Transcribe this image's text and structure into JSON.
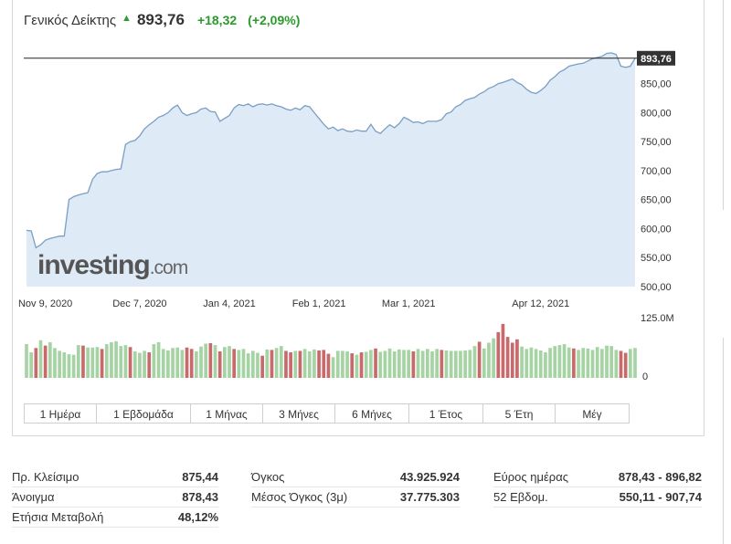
{
  "header": {
    "index_name": "Γενικός Δείκτης",
    "arrow_icon": "triangle-up-icon",
    "price": "893,76",
    "change": "+18,32",
    "change_pct": "(+2,09%)"
  },
  "colors": {
    "up_volume": "#a5d3a3",
    "down_volume": "#c86a6c",
    "line": "#7a9ec5",
    "area_fill": "#deeaf6",
    "positive_text": "#2a9a2a"
  },
  "chart_data": {
    "type": "area",
    "title": "",
    "watermark": "investing.com",
    "current_value_label": "893,76",
    "current_value": 893.76,
    "y_ticks": [
      500,
      550,
      600,
      650,
      700,
      750,
      800,
      850
    ],
    "y_tick_labels": [
      "500,00",
      "550,00",
      "600,00",
      "650,00",
      "700,00",
      "750,00",
      "800,00",
      "850,00"
    ],
    "ylim": [
      500,
      906
    ],
    "x_tick_labels": [
      "Nov 9, 2020",
      "Dec 7, 2020",
      "Jan 4, 2021",
      "Feb 1, 2021",
      "Mar 1, 2021",
      "Apr 12, 2021"
    ],
    "x_tick_index": [
      4,
      24,
      43,
      62,
      81,
      109
    ],
    "series": [
      {
        "values": [
          597,
          596,
          567,
          572,
          580,
          583,
          585,
          587,
          587,
          650,
          655,
          658,
          660,
          662,
          685,
          695,
          698,
          698,
          700,
          702,
          703,
          745,
          750,
          752,
          760,
          772,
          779,
          785,
          792,
          795,
          800,
          808,
          813,
          800,
          795,
          798,
          800,
          806,
          808,
          802,
          801,
          785,
          790,
          795,
          808,
          814,
          812,
          815,
          810,
          814,
          815,
          813,
          815,
          812,
          810,
          806,
          804,
          808,
          805,
          812,
          810,
          800,
          790,
          780,
          772,
          775,
          769,
          772,
          768,
          767,
          770,
          768,
          768,
          780,
          768,
          764,
          772,
          779,
          774,
          781,
          792,
          788,
          783,
          784,
          781,
          785,
          785,
          785,
          788,
          798,
          801,
          810,
          814,
          821,
          824,
          826,
          832,
          836,
          842,
          845,
          850,
          852,
          855,
          858,
          852,
          848,
          840,
          835,
          833,
          838,
          845,
          856,
          862,
          870,
          874,
          880,
          882,
          884,
          885,
          889,
          893,
          895,
          897,
          902,
          903,
          900,
          880,
          878,
          880,
          893.76
        ]
      }
    ],
    "volume": {
      "axis_top_label": "125.0M",
      "axis_bottom_label": "0",
      "ylim": [
        0,
        125
      ],
      "values": [
        70,
        53,
        62,
        78,
        67,
        74,
        62,
        56,
        53,
        49,
        48,
        68,
        67,
        63,
        63,
        64,
        60,
        70,
        74,
        76,
        66,
        68,
        64,
        55,
        52,
        56,
        53,
        70,
        74,
        60,
        57,
        62,
        63,
        58,
        63,
        60,
        55,
        65,
        71,
        72,
        68,
        55,
        64,
        66,
        60,
        58,
        60,
        51,
        56,
        52,
        46,
        59,
        58,
        62,
        66,
        56,
        53,
        56,
        56,
        60,
        55,
        59,
        57,
        58,
        50,
        43,
        56,
        56,
        55,
        51,
        48,
        53,
        54,
        58,
        61,
        54,
        56,
        61,
        55,
        59,
        58,
        58,
        55,
        60,
        56,
        60,
        55,
        60,
        58,
        57,
        56,
        56,
        56,
        57,
        58,
        66,
        75,
        61,
        73,
        82,
        95,
        112,
        85,
        73,
        80,
        65,
        60,
        63,
        60,
        57,
        53,
        62,
        66,
        68,
        70,
        63,
        61,
        58,
        62,
        61,
        58,
        64,
        60,
        67,
        66,
        58,
        56,
        52,
        60,
        62
      ],
      "up": [
        1,
        1,
        0,
        1,
        0,
        1,
        1,
        1,
        1,
        1,
        1,
        1,
        0,
        1,
        1,
        1,
        0,
        1,
        1,
        1,
        1,
        1,
        0,
        1,
        1,
        1,
        0,
        1,
        1,
        1,
        1,
        1,
        1,
        1,
        0,
        0,
        1,
        1,
        1,
        0,
        1,
        0,
        1,
        1,
        0,
        1,
        1,
        1,
        1,
        1,
        0,
        1,
        0,
        1,
        1,
        0,
        0,
        1,
        0,
        1,
        1,
        1,
        0,
        0,
        0,
        1,
        1,
        1,
        1,
        0,
        1,
        0,
        1,
        1,
        0,
        1,
        1,
        1,
        1,
        1,
        1,
        1,
        0,
        1,
        1,
        1,
        1,
        1,
        0,
        1,
        1,
        1,
        1,
        1,
        1,
        1,
        0,
        1,
        1,
        1,
        0,
        0,
        0,
        0,
        0,
        1,
        1,
        1,
        1,
        1,
        1,
        1,
        1,
        1,
        1,
        1,
        0,
        1,
        1,
        1,
        1,
        1,
        1,
        1,
        1,
        1,
        0,
        0,
        1,
        1
      ]
    }
  },
  "ranges": [
    "1 Ημέρα",
    "1 Εβδομάδα",
    "1 Μήνας",
    "3 Μήνες",
    "6 Μήνες",
    "1 Έτος",
    "5 Έτη",
    "Μέγ"
  ],
  "stats": {
    "col1": [
      {
        "label": "Πρ. Κλείσιμο",
        "value": "875,44"
      },
      {
        "label": "Άνοιγμα",
        "value": "878,43"
      },
      {
        "label": "Ετήσια Μεταβολή",
        "value": "48,12%"
      }
    ],
    "col2": [
      {
        "label": "Όγκος",
        "value": "43.925.924"
      },
      {
        "label": "Μέσος Όγκος (3μ)",
        "value": "37.775.303"
      }
    ],
    "col3": [
      {
        "label": "Εύρος ημέρας",
        "value": "878,43 - 896,82"
      },
      {
        "label": "52 Εβδομ.",
        "value": "550,11 - 907,74"
      }
    ]
  }
}
